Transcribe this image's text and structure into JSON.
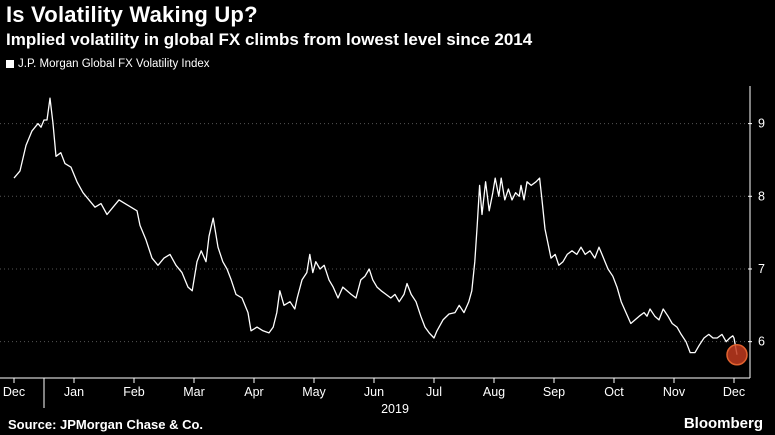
{
  "title": "Is Volatility Waking Up?",
  "subtitle": "Implied volatility in global FX climbs from lowest level since 2014",
  "source": "Source: JPMorgan Chase & Co.",
  "brand": "Bloomberg",
  "colors": {
    "background": "#000000",
    "line": "#ffffff",
    "gridline": "#555555",
    "marker_fill": "#c0391f",
    "marker_stroke": "#e0622f"
  },
  "chart_data": {
    "type": "line",
    "title": "Is Volatility Waking Up?",
    "subtitle": "Implied volatility in global FX climbs from lowest level since 2014",
    "series_name": "J.P. Morgan Global FX Volatility Index",
    "year_label": "2019",
    "x_domain": [
      0,
      12.5
    ],
    "ylim": [
      5.5,
      9.6
    ],
    "y_ticks": [
      6,
      7,
      8,
      9
    ],
    "month_ticks": [
      {
        "label": "Dec",
        "x": 0.0
      },
      {
        "label": "Jan",
        "x": 1.0
      },
      {
        "label": "Feb",
        "x": 2.0
      },
      {
        "label": "Mar",
        "x": 3.0
      },
      {
        "label": "Apr",
        "x": 4.0
      },
      {
        "label": "May",
        "x": 5.0
      },
      {
        "label": "Jun",
        "x": 6.0
      },
      {
        "label": "Jul",
        "x": 7.0
      },
      {
        "label": "Aug",
        "x": 8.0
      },
      {
        "label": "Sep",
        "x": 9.0
      },
      {
        "label": "Oct",
        "x": 10.0
      },
      {
        "label": "Nov",
        "x": 11.0
      },
      {
        "label": "Dec",
        "x": 12.0
      }
    ],
    "year_label_x": 6.35,
    "highlight_point": {
      "x": 12.05,
      "y": 5.82
    },
    "points": [
      [
        0.0,
        8.25
      ],
      [
        0.1,
        8.35
      ],
      [
        0.2,
        8.7
      ],
      [
        0.3,
        8.9
      ],
      [
        0.4,
        9.0
      ],
      [
        0.45,
        8.95
      ],
      [
        0.5,
        9.05
      ],
      [
        0.55,
        9.05
      ],
      [
        0.6,
        9.35
      ],
      [
        0.65,
        9.0
      ],
      [
        0.7,
        8.55
      ],
      [
        0.78,
        8.6
      ],
      [
        0.85,
        8.45
      ],
      [
        0.95,
        8.4
      ],
      [
        1.05,
        8.2
      ],
      [
        1.15,
        8.05
      ],
      [
        1.25,
        7.95
      ],
      [
        1.35,
        7.85
      ],
      [
        1.45,
        7.9
      ],
      [
        1.55,
        7.75
      ],
      [
        1.65,
        7.85
      ],
      [
        1.75,
        7.95
      ],
      [
        1.85,
        7.9
      ],
      [
        1.95,
        7.85
      ],
      [
        2.05,
        7.8
      ],
      [
        2.1,
        7.6
      ],
      [
        2.2,
        7.4
      ],
      [
        2.3,
        7.15
      ],
      [
        2.4,
        7.05
      ],
      [
        2.5,
        7.15
      ],
      [
        2.6,
        7.2
      ],
      [
        2.7,
        7.05
      ],
      [
        2.8,
        6.95
      ],
      [
        2.9,
        6.75
      ],
      [
        2.97,
        6.7
      ],
      [
        3.05,
        7.1
      ],
      [
        3.12,
        7.25
      ],
      [
        3.2,
        7.1
      ],
      [
        3.25,
        7.45
      ],
      [
        3.32,
        7.7
      ],
      [
        3.4,
        7.3
      ],
      [
        3.48,
        7.1
      ],
      [
        3.55,
        7.0
      ],
      [
        3.62,
        6.85
      ],
      [
        3.7,
        6.65
      ],
      [
        3.8,
        6.6
      ],
      [
        3.9,
        6.4
      ],
      [
        3.95,
        6.15
      ],
      [
        4.05,
        6.2
      ],
      [
        4.15,
        6.15
      ],
      [
        4.25,
        6.12
      ],
      [
        4.32,
        6.2
      ],
      [
        4.38,
        6.4
      ],
      [
        4.43,
        6.7
      ],
      [
        4.5,
        6.5
      ],
      [
        4.6,
        6.55
      ],
      [
        4.68,
        6.45
      ],
      [
        4.72,
        6.6
      ],
      [
        4.8,
        6.85
      ],
      [
        4.88,
        6.95
      ],
      [
        4.93,
        7.2
      ],
      [
        4.98,
        6.95
      ],
      [
        5.03,
        7.1
      ],
      [
        5.1,
        7.0
      ],
      [
        5.17,
        7.05
      ],
      [
        5.25,
        6.85
      ],
      [
        5.32,
        6.75
      ],
      [
        5.4,
        6.6
      ],
      [
        5.48,
        6.75
      ],
      [
        5.55,
        6.7
      ],
      [
        5.62,
        6.65
      ],
      [
        5.7,
        6.6
      ],
      [
        5.78,
        6.85
      ],
      [
        5.85,
        6.9
      ],
      [
        5.92,
        7.0
      ],
      [
        5.98,
        6.85
      ],
      [
        6.05,
        6.75
      ],
      [
        6.12,
        6.7
      ],
      [
        6.2,
        6.65
      ],
      [
        6.28,
        6.6
      ],
      [
        6.35,
        6.65
      ],
      [
        6.42,
        6.55
      ],
      [
        6.5,
        6.65
      ],
      [
        6.55,
        6.8
      ],
      [
        6.62,
        6.65
      ],
      [
        6.7,
        6.55
      ],
      [
        6.78,
        6.35
      ],
      [
        6.85,
        6.2
      ],
      [
        6.92,
        6.12
      ],
      [
        7.0,
        6.05
      ],
      [
        7.05,
        6.15
      ],
      [
        7.15,
        6.3
      ],
      [
        7.25,
        6.38
      ],
      [
        7.35,
        6.4
      ],
      [
        7.42,
        6.5
      ],
      [
        7.5,
        6.4
      ],
      [
        7.58,
        6.55
      ],
      [
        7.63,
        6.7
      ],
      [
        7.68,
        7.1
      ],
      [
        7.72,
        7.6
      ],
      [
        7.76,
        8.15
      ],
      [
        7.8,
        7.75
      ],
      [
        7.86,
        8.2
      ],
      [
        7.92,
        7.8
      ],
      [
        7.98,
        8.05
      ],
      [
        8.02,
        8.25
      ],
      [
        8.08,
        8.0
      ],
      [
        8.12,
        8.25
      ],
      [
        8.18,
        7.95
      ],
      [
        8.24,
        8.1
      ],
      [
        8.3,
        7.95
      ],
      [
        8.36,
        8.05
      ],
      [
        8.42,
        8.0
      ],
      [
        8.45,
        8.15
      ],
      [
        8.5,
        7.95
      ],
      [
        8.55,
        8.2
      ],
      [
        8.62,
        8.15
      ],
      [
        8.7,
        8.2
      ],
      [
        8.76,
        8.25
      ],
      [
        8.8,
        7.95
      ],
      [
        8.85,
        7.55
      ],
      [
        8.9,
        7.35
      ],
      [
        8.95,
        7.15
      ],
      [
        9.02,
        7.2
      ],
      [
        9.08,
        7.05
      ],
      [
        9.15,
        7.1
      ],
      [
        9.22,
        7.2
      ],
      [
        9.3,
        7.25
      ],
      [
        9.38,
        7.2
      ],
      [
        9.45,
        7.3
      ],
      [
        9.52,
        7.2
      ],
      [
        9.6,
        7.25
      ],
      [
        9.68,
        7.15
      ],
      [
        9.75,
        7.3
      ],
      [
        9.8,
        7.2
      ],
      [
        9.85,
        7.1
      ],
      [
        9.9,
        7.0
      ],
      [
        9.98,
        6.9
      ],
      [
        10.05,
        6.75
      ],
      [
        10.12,
        6.55
      ],
      [
        10.2,
        6.4
      ],
      [
        10.28,
        6.25
      ],
      [
        10.35,
        6.3
      ],
      [
        10.42,
        6.35
      ],
      [
        10.5,
        6.4
      ],
      [
        10.55,
        6.35
      ],
      [
        10.6,
        6.45
      ],
      [
        10.68,
        6.35
      ],
      [
        10.75,
        6.3
      ],
      [
        10.82,
        6.45
      ],
      [
        10.9,
        6.35
      ],
      [
        10.97,
        6.25
      ],
      [
        11.05,
        6.2
      ],
      [
        11.12,
        6.1
      ],
      [
        11.2,
        6.0
      ],
      [
        11.27,
        5.85
      ],
      [
        11.35,
        5.85
      ],
      [
        11.42,
        5.95
      ],
      [
        11.5,
        6.05
      ],
      [
        11.58,
        6.1
      ],
      [
        11.65,
        6.05
      ],
      [
        11.72,
        6.05
      ],
      [
        11.8,
        6.1
      ],
      [
        11.87,
        6.0
      ],
      [
        11.93,
        6.05
      ],
      [
        11.98,
        6.08
      ],
      [
        12.0,
        6.05
      ],
      [
        12.05,
        5.82
      ]
    ]
  }
}
